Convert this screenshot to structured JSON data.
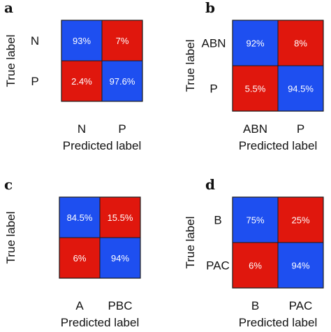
{
  "colors": {
    "diagonal": "#1e4ff0",
    "off_diagonal": "#e0170d",
    "grid": "#1a1a1a"
  },
  "chart_data": [
    {
      "type": "heatmap",
      "panel": "a",
      "xlabel": "Predicted label",
      "ylabel": "True label",
      "x_categories": [
        "N",
        "P"
      ],
      "y_categories": [
        "N",
        "P"
      ],
      "values": [
        [
          93,
          7
        ],
        [
          2.4,
          97.6
        ]
      ],
      "cell_text": [
        [
          "93%",
          "7%"
        ],
        [
          "2.4%",
          "97.6%"
        ]
      ]
    },
    {
      "type": "heatmap",
      "panel": "b",
      "xlabel": "Predicted label",
      "ylabel": "True label",
      "x_categories": [
        "ABN",
        "P"
      ],
      "y_categories": [
        "ABN",
        "P"
      ],
      "values": [
        [
          92,
          8
        ],
        [
          5.5,
          94.5
        ]
      ],
      "cell_text": [
        [
          "92%",
          "8%"
        ],
        [
          "5.5%",
          "94.5%"
        ]
      ]
    },
    {
      "type": "heatmap",
      "panel": "c",
      "xlabel": "Predicted label",
      "ylabel": "True label",
      "x_categories": [
        "A",
        "PBC"
      ],
      "y_categories": [
        "",
        ""
      ],
      "values": [
        [
          84.5,
          15.5
        ],
        [
          6,
          94
        ]
      ],
      "cell_text": [
        [
          "84.5%",
          "15.5%"
        ],
        [
          "6%",
          "94%"
        ]
      ]
    },
    {
      "type": "heatmap",
      "panel": "d",
      "xlabel": "Predicted label",
      "ylabel": "True label",
      "x_categories": [
        "B",
        "PAC"
      ],
      "y_categories": [
        "B",
        "PAC"
      ],
      "values": [
        [
          75,
          25
        ],
        [
          6,
          94
        ]
      ],
      "cell_text": [
        [
          "75%",
          "25%"
        ],
        [
          "6%",
          "94%"
        ]
      ]
    }
  ]
}
